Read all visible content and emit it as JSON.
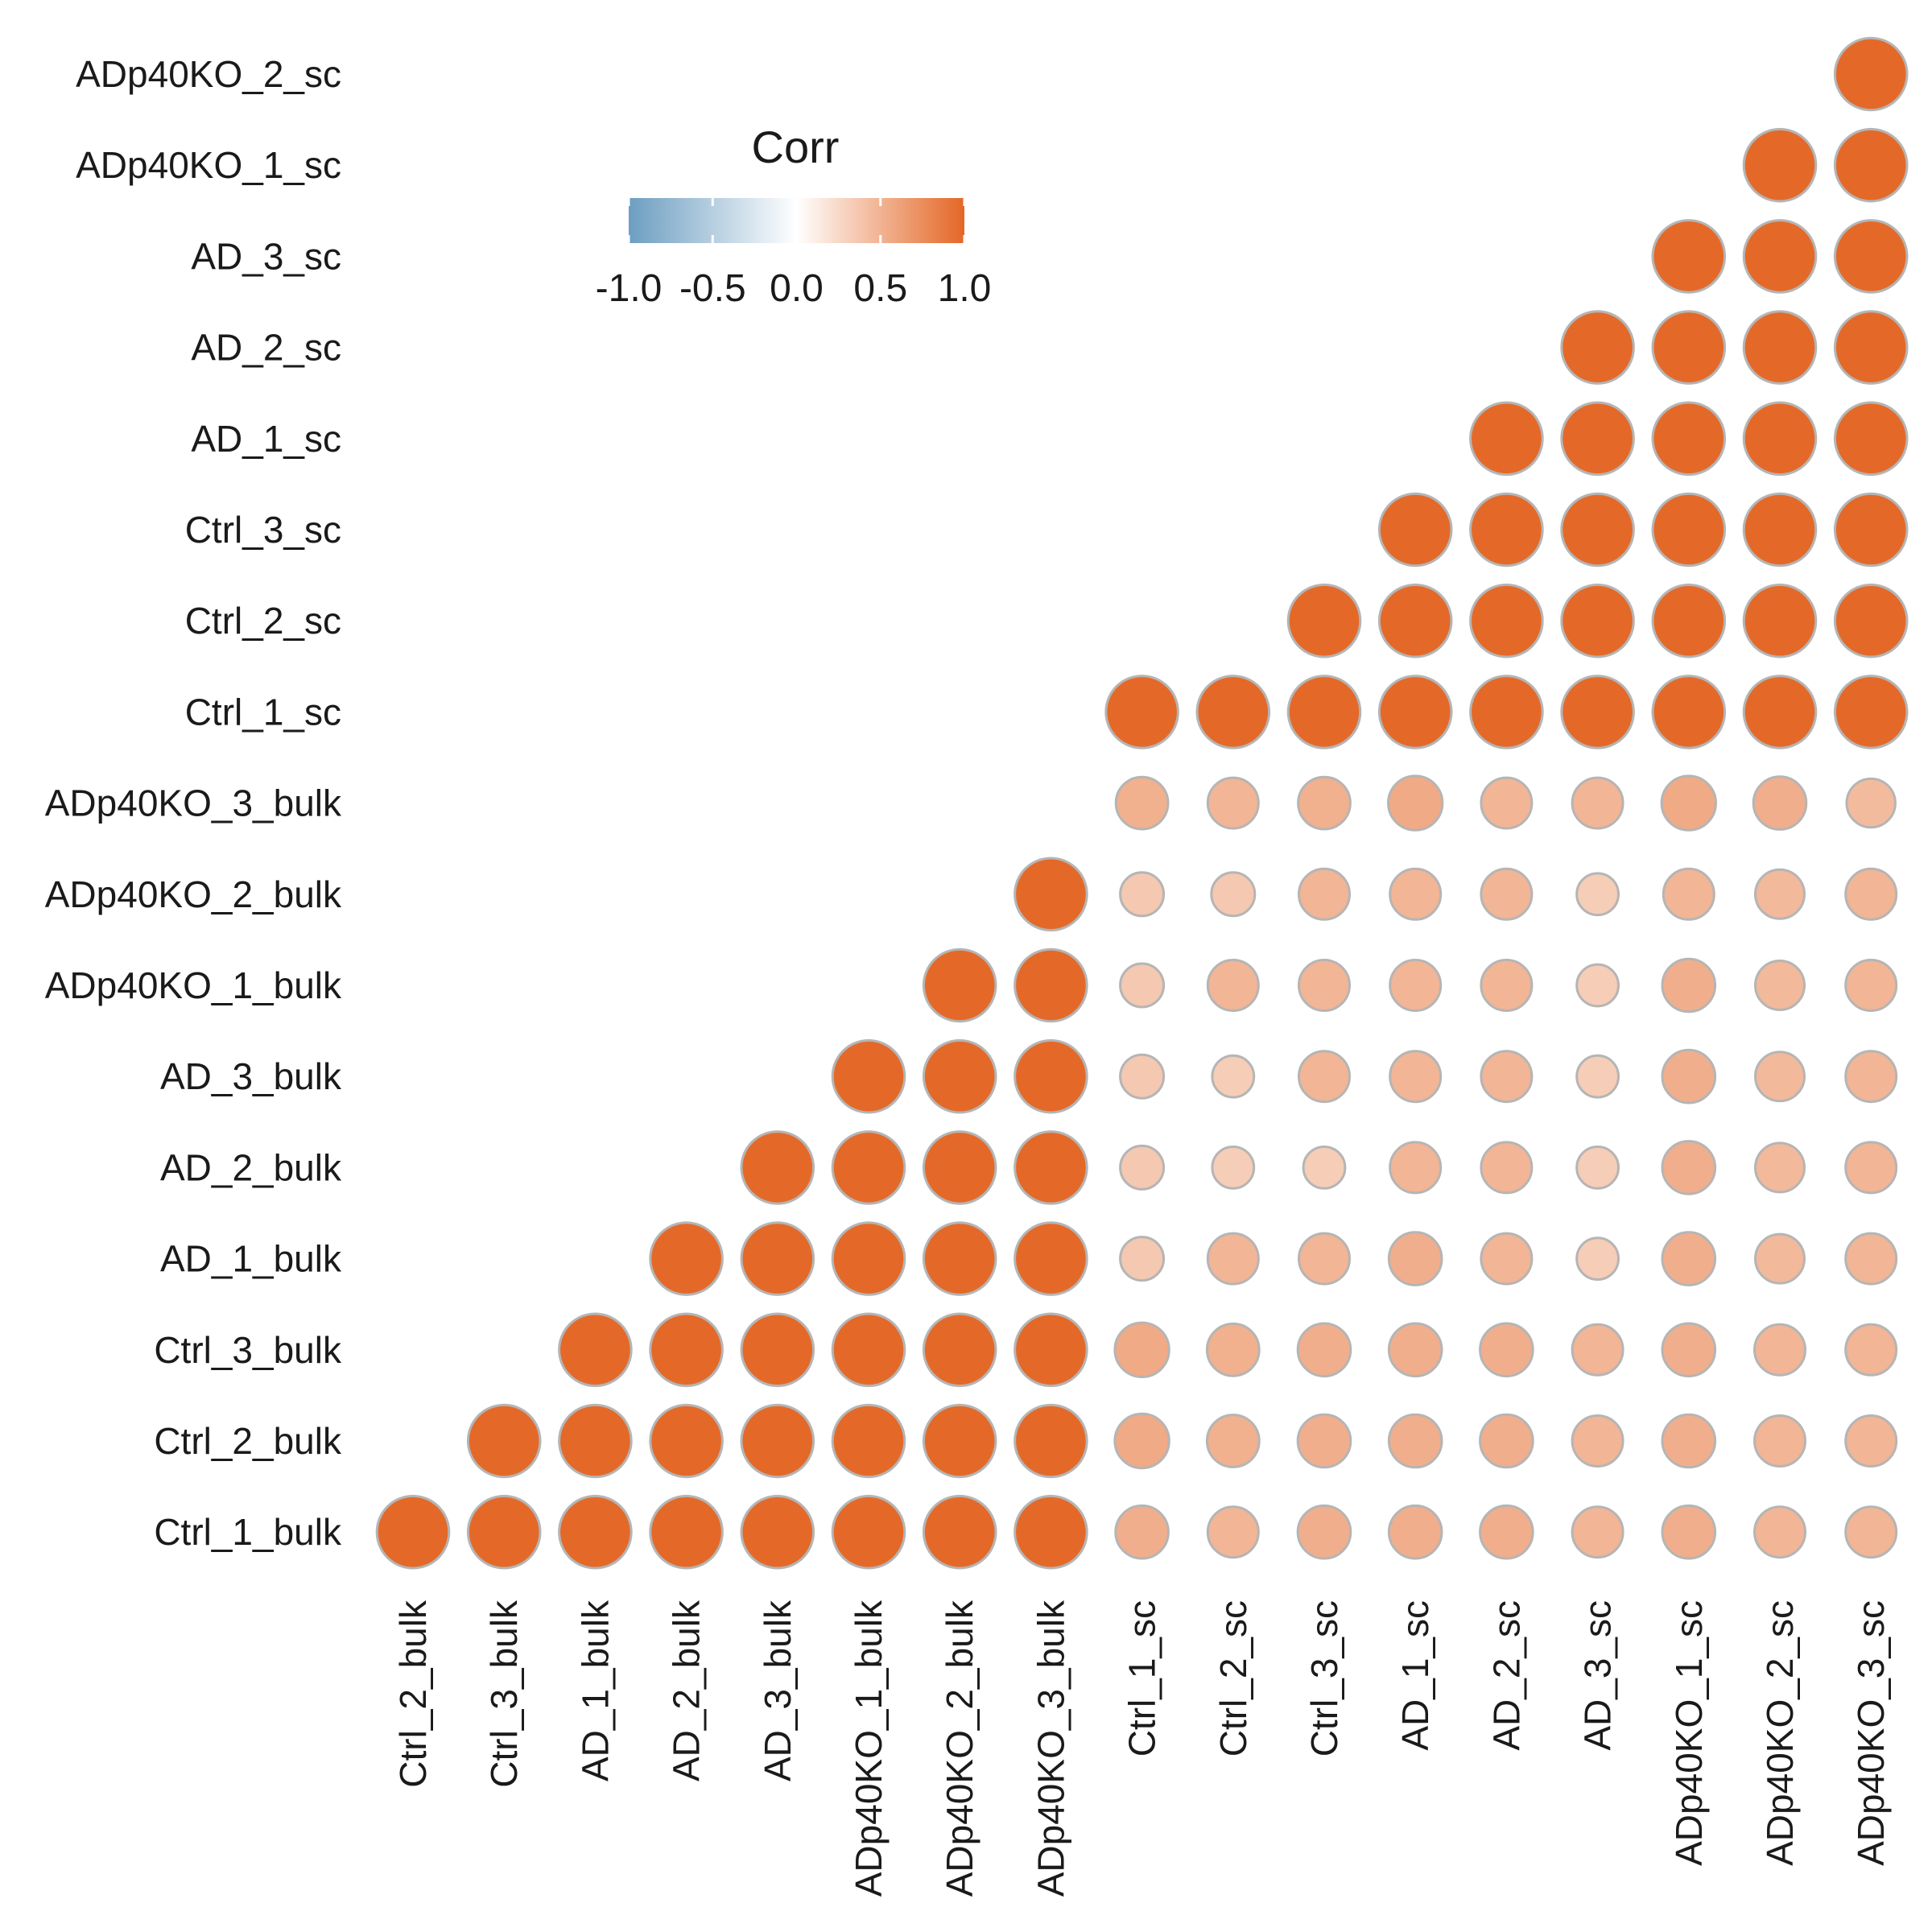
{
  "chart_data": {
    "type": "heatmap",
    "subtype": "correlation-circle",
    "shape": "lower-triangular",
    "value_scale": {
      "min": -1.0,
      "max": 1.0
    },
    "row_labels": [
      "ADp40KO_2_sc",
      "ADp40KO_1_sc",
      "AD_3_sc",
      "AD_2_sc",
      "AD_1_sc",
      "Ctrl_3_sc",
      "Ctrl_2_sc",
      "Ctrl_1_sc",
      "ADp40KO_3_bulk",
      "ADp40KO_2_bulk",
      "ADp40KO_1_bulk",
      "AD_3_bulk",
      "AD_2_bulk",
      "AD_1_bulk",
      "Ctrl_3_bulk",
      "Ctrl_2_bulk",
      "Ctrl_1_bulk"
    ],
    "col_labels": [
      "Ctrl_2_bulk",
      "Ctrl_3_bulk",
      "AD_1_bulk",
      "AD_2_bulk",
      "AD_3_bulk",
      "ADp40KO_1_bulk",
      "ADp40KO_2_bulk",
      "ADp40KO_3_bulk",
      "Ctrl_1_sc",
      "Ctrl_2_sc",
      "Ctrl_3_sc",
      "AD_1_sc",
      "AD_2_sc",
      "AD_3_sc",
      "ADp40KO_1_sc",
      "ADp40KO_2_sc",
      "ADp40KO_3_sc"
    ],
    "matrix": [
      [
        null,
        null,
        null,
        null,
        null,
        null,
        null,
        null,
        null,
        null,
        null,
        null,
        null,
        null,
        null,
        null,
        0.99
      ],
      [
        null,
        null,
        null,
        null,
        null,
        null,
        null,
        null,
        null,
        null,
        null,
        null,
        null,
        null,
        null,
        0.99,
        0.99
      ],
      [
        null,
        null,
        null,
        null,
        null,
        null,
        null,
        null,
        null,
        null,
        null,
        null,
        null,
        null,
        0.99,
        0.99,
        0.99
      ],
      [
        null,
        null,
        null,
        null,
        null,
        null,
        null,
        null,
        null,
        null,
        null,
        null,
        null,
        0.99,
        0.99,
        0.99,
        0.99
      ],
      [
        null,
        null,
        null,
        null,
        null,
        null,
        null,
        null,
        null,
        null,
        null,
        null,
        0.99,
        0.99,
        0.99,
        0.99,
        0.99
      ],
      [
        null,
        null,
        null,
        null,
        null,
        null,
        null,
        null,
        null,
        null,
        null,
        0.99,
        0.99,
        0.99,
        0.99,
        0.99,
        0.99
      ],
      [
        null,
        null,
        null,
        null,
        null,
        null,
        null,
        null,
        null,
        null,
        0.99,
        0.99,
        0.99,
        0.99,
        0.99,
        0.99,
        0.99
      ],
      [
        null,
        null,
        null,
        null,
        null,
        null,
        null,
        null,
        0.99,
        0.99,
        0.99,
        0.99,
        0.99,
        0.99,
        0.99,
        0.99,
        0.99
      ],
      [
        null,
        null,
        null,
        null,
        null,
        null,
        null,
        null,
        0.52,
        0.49,
        0.52,
        0.56,
        0.49,
        0.49,
        0.56,
        0.53,
        0.45
      ],
      [
        null,
        null,
        null,
        null,
        null,
        null,
        null,
        0.99,
        0.36,
        0.36,
        0.49,
        0.49,
        0.49,
        0.33,
        0.49,
        0.46,
        0.49
      ],
      [
        null,
        null,
        null,
        null,
        null,
        null,
        0.99,
        0.99,
        0.36,
        0.49,
        0.49,
        0.49,
        0.49,
        0.33,
        0.53,
        0.46,
        0.49
      ],
      [
        null,
        null,
        null,
        null,
        null,
        0.99,
        0.99,
        0.99,
        0.36,
        0.33,
        0.49,
        0.49,
        0.49,
        0.33,
        0.53,
        0.46,
        0.49
      ],
      [
        null,
        null,
        null,
        null,
        0.99,
        0.99,
        0.99,
        0.99,
        0.36,
        0.33,
        0.33,
        0.49,
        0.49,
        0.33,
        0.53,
        0.46,
        0.49
      ],
      [
        null,
        null,
        null,
        0.99,
        0.99,
        0.99,
        0.99,
        0.99,
        0.36,
        0.49,
        0.49,
        0.53,
        0.49,
        0.33,
        0.53,
        0.46,
        0.49
      ],
      [
        null,
        null,
        0.99,
        0.99,
        0.99,
        0.99,
        0.99,
        0.99,
        0.56,
        0.52,
        0.53,
        0.53,
        0.53,
        0.49,
        0.53,
        0.49,
        0.49
      ],
      [
        null,
        0.99,
        0.99,
        0.99,
        0.99,
        0.99,
        0.99,
        0.99,
        0.56,
        0.52,
        0.53,
        0.53,
        0.53,
        0.49,
        0.53,
        0.49,
        0.49
      ],
      [
        0.99,
        0.99,
        0.99,
        0.99,
        0.99,
        0.99,
        0.99,
        0.99,
        0.53,
        0.49,
        0.53,
        0.53,
        0.53,
        0.49,
        0.53,
        0.49,
        0.49
      ]
    ],
    "legend": {
      "title": "Corr",
      "ticks": [
        -1.0,
        -0.5,
        0.0,
        0.5,
        1.0
      ],
      "tick_labels": [
        "-1.0",
        "-0.5",
        "0.0",
        "0.5",
        "1.0"
      ],
      "placement": "top-left inside plot"
    },
    "colors": {
      "low": "#6d9ec1",
      "mid": "#ffffff",
      "high": "#e46726",
      "circle_outline": "#b5b5b5"
    },
    "xlabel": "",
    "ylabel": "",
    "title": "",
    "grid": false
  }
}
